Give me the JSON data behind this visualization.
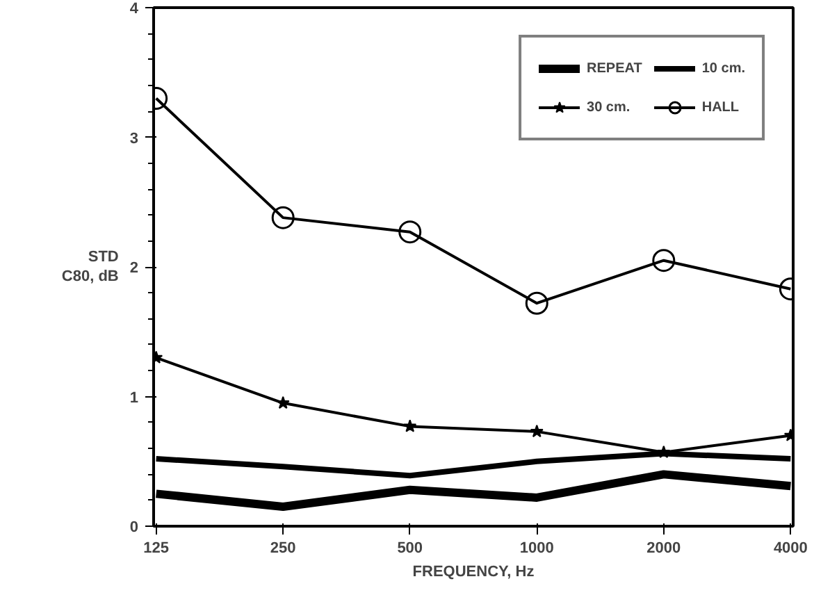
{
  "chart_data": {
    "type": "line",
    "xlabel": "FREQUENCY, Hz",
    "ylabel": "STD\nC80, dB",
    "categories": [
      "125",
      "250",
      "500",
      "1000",
      "2000",
      "4000"
    ],
    "ylim": [
      0,
      4
    ],
    "yticks": [
      0,
      1,
      2,
      3,
      4
    ],
    "grid": false,
    "legend": "top right",
    "series": [
      {
        "name": "REPEAT",
        "color": "#000000",
        "marker": "none",
        "values": [
          0.25,
          0.15,
          0.28,
          0.22,
          0.4,
          0.31
        ]
      },
      {
        "name": "10 cm.",
        "color": "#000000",
        "marker": "none",
        "values": [
          0.52,
          0.46,
          0.39,
          0.5,
          0.56,
          0.52
        ]
      },
      {
        "name": "30 cm.",
        "color": "#000000",
        "marker": "star",
        "values": [
          1.3,
          0.95,
          0.77,
          0.73,
          0.57,
          0.7
        ]
      },
      {
        "name": "HALL",
        "color": "#000000",
        "marker": "circle",
        "values": [
          3.3,
          2.38,
          2.27,
          1.72,
          2.05,
          1.83
        ]
      }
    ]
  }
}
